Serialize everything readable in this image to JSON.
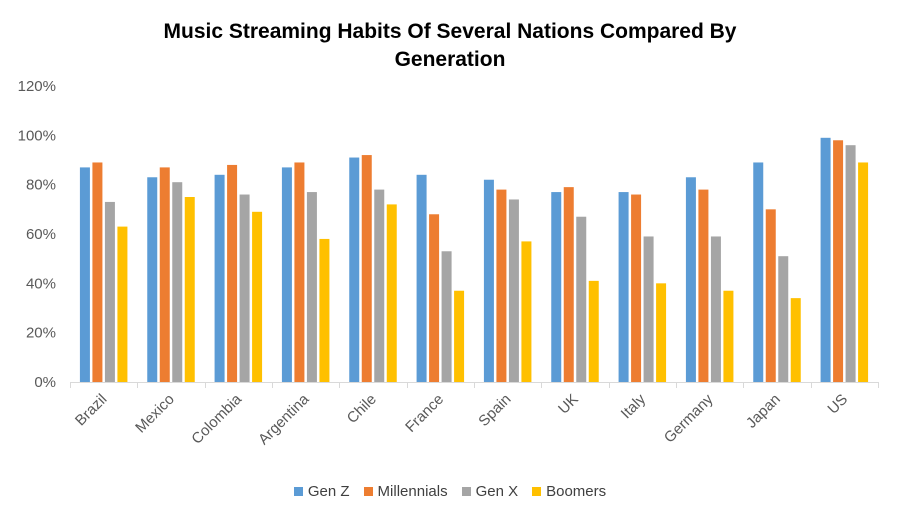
{
  "chart_data": {
    "type": "bar",
    "title_lines": [
      "Music Streaming Habits Of Several Nations Compared By",
      "Generation"
    ],
    "categories": [
      "Brazil",
      "Mexico",
      "Colombia",
      "Argentina",
      "Chile",
      "France",
      "Spain",
      "UK",
      "Italy",
      "Germany",
      "Japan",
      "US"
    ],
    "series": [
      {
        "name": "Gen Z",
        "color": "#5B9BD5",
        "values": [
          0.87,
          0.83,
          0.84,
          0.87,
          0.91,
          0.84,
          0.82,
          0.77,
          0.77,
          0.83,
          0.89,
          0.99
        ]
      },
      {
        "name": "Millennials",
        "color": "#ED7D31",
        "values": [
          0.89,
          0.87,
          0.88,
          0.89,
          0.92,
          0.68,
          0.78,
          0.79,
          0.76,
          0.78,
          0.7,
          0.98
        ]
      },
      {
        "name": "Gen X",
        "color": "#A5A5A5",
        "values": [
          0.73,
          0.81,
          0.76,
          0.77,
          0.78,
          0.53,
          0.74,
          0.67,
          0.59,
          0.59,
          0.51,
          0.96
        ]
      },
      {
        "name": "Boomers",
        "color": "#FFC000",
        "values": [
          0.63,
          0.75,
          0.69,
          0.58,
          0.72,
          0.37,
          0.57,
          0.41,
          0.4,
          0.37,
          0.34,
          0.89
        ]
      }
    ],
    "ylim": [
      0,
      1.2
    ],
    "y_ticks": [
      "0%",
      "20%",
      "40%",
      "60%",
      "80%",
      "100%",
      "120%"
    ],
    "grid": false,
    "legend_position": "bottom"
  }
}
